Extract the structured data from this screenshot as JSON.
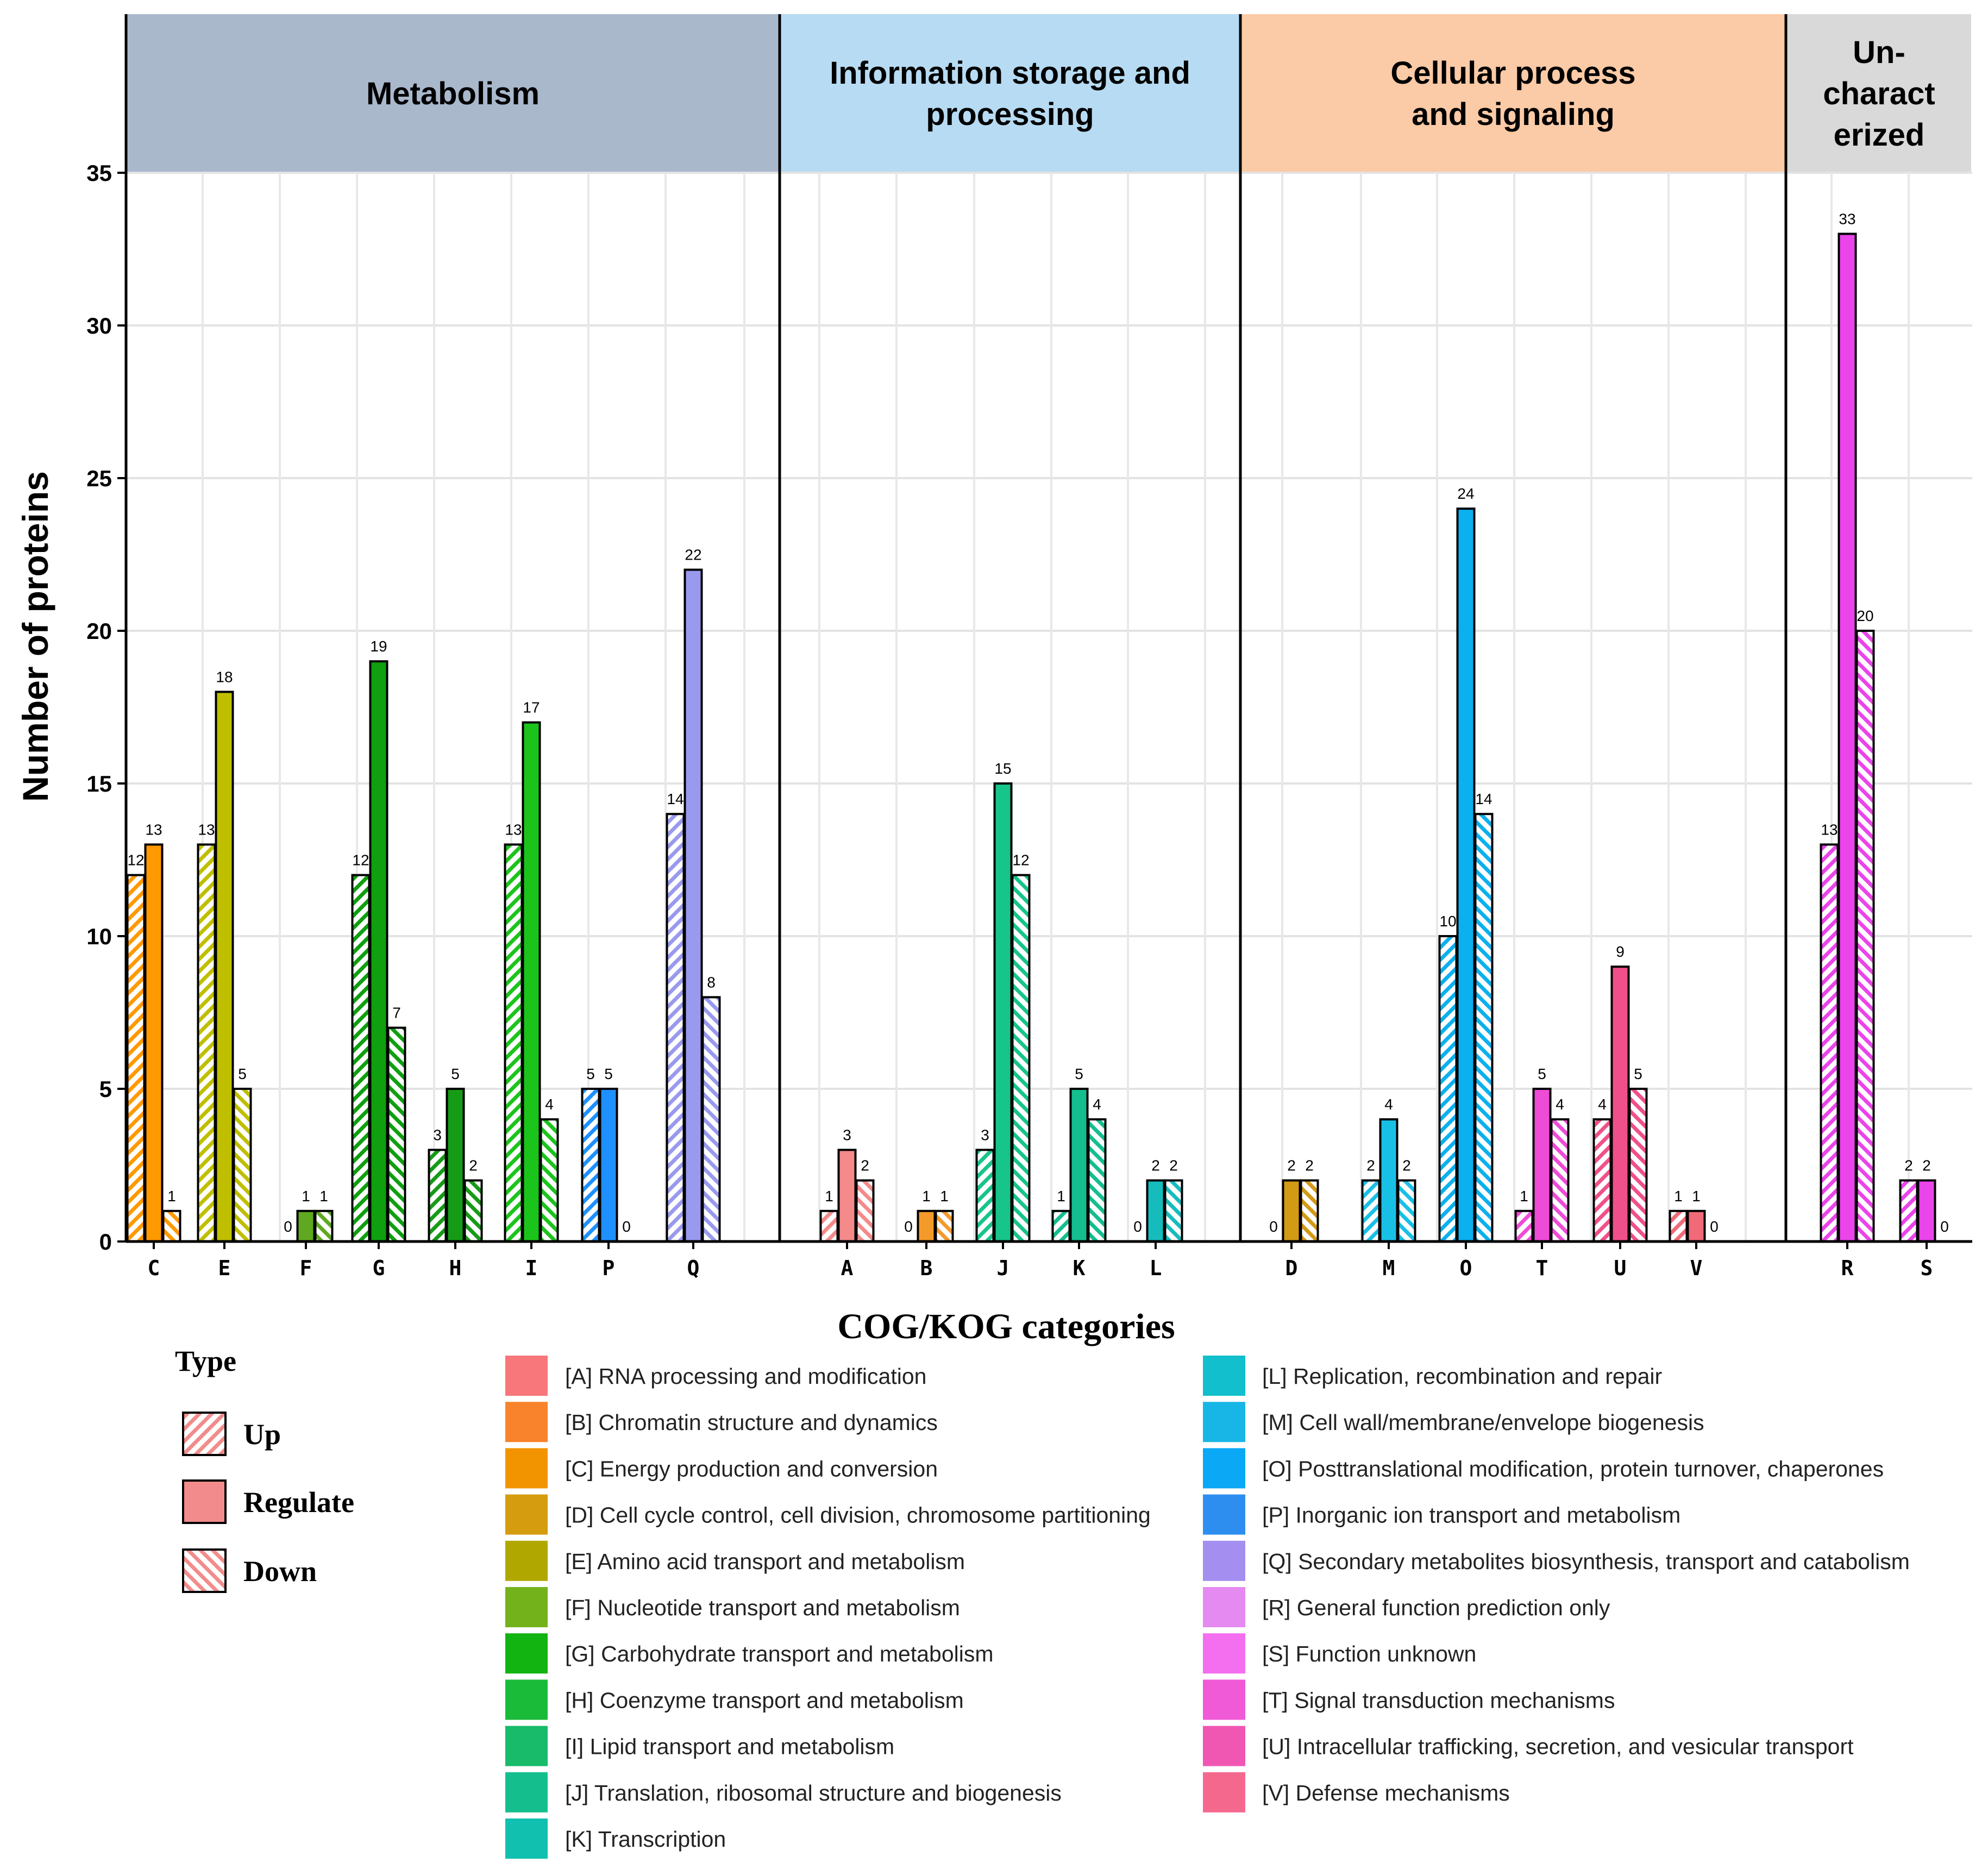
{
  "chart_data": {
    "type": "bar",
    "ylabel": "Number of proteins",
    "xlabel": "COG/KOG categories",
    "ylim": [
      0,
      35
    ],
    "yticks": [
      "0",
      "5",
      "10",
      "15",
      "20",
      "25",
      "30",
      "35"
    ],
    "series_names": [
      "Up",
      "Regulate",
      "Down"
    ],
    "groups": [
      {
        "title_lines": [
          "Metabolism"
        ],
        "color": "#aab8cc"
      },
      {
        "title_lines": [
          "Information storage and",
          "processing"
        ],
        "color": "#b7dbf2"
      },
      {
        "title_lines": [
          "Cellular process",
          "and signaling"
        ],
        "color": "#fbcaa6"
      },
      {
        "title_lines": [
          "Un-",
          "charact",
          "erized"
        ],
        "color": "#d9d9d9"
      }
    ],
    "categories": [
      {
        "code": "C",
        "group": 0,
        "color": "#ff9900",
        "up": 12,
        "regulate": 13,
        "down": 1
      },
      {
        "code": "E",
        "group": 0,
        "color": "#bfbf00",
        "up": 13,
        "regulate": 18,
        "down": 5
      },
      {
        "code": "F",
        "group": 0,
        "color": "#5fa81f",
        "up": 0,
        "regulate": 1,
        "down": 1
      },
      {
        "code": "G",
        "group": 0,
        "color": "#0f9f0f",
        "up": 12,
        "regulate": 19,
        "down": 7
      },
      {
        "code": "H",
        "group": 0,
        "color": "#169b16",
        "up": 3,
        "regulate": 5,
        "down": 2
      },
      {
        "code": "I",
        "group": 0,
        "color": "#1bc41b",
        "up": 13,
        "regulate": 17,
        "down": 4
      },
      {
        "code": "P",
        "group": 0,
        "color": "#1e90ff",
        "up": 5,
        "regulate": 5,
        "down": 0
      },
      {
        "code": "Q",
        "group": 0,
        "color": "#9999ee",
        "up": 14,
        "regulate": 22,
        "down": 8
      },
      {
        "code": "A",
        "group": 1,
        "color": "#f48a8a",
        "up": 1,
        "regulate": 3,
        "down": 2
      },
      {
        "code": "B",
        "group": 1,
        "color": "#f39a2a",
        "up": 0,
        "regulate": 1,
        "down": 1
      },
      {
        "code": "J",
        "group": 1,
        "color": "#17c48a",
        "up": 3,
        "regulate": 15,
        "down": 12
      },
      {
        "code": "K",
        "group": 1,
        "color": "#14be8e",
        "up": 1,
        "regulate": 5,
        "down": 4
      },
      {
        "code": "L",
        "group": 1,
        "color": "#16bcbc",
        "up": 0,
        "regulate": 2,
        "down": 2
      },
      {
        "code": "D",
        "group": 2,
        "color": "#d39a16",
        "up": 0,
        "regulate": 2,
        "down": 2
      },
      {
        "code": "M",
        "group": 2,
        "color": "#19c0e6",
        "up": 2,
        "regulate": 4,
        "down": 2
      },
      {
        "code": "O",
        "group": 2,
        "color": "#0bb0ee",
        "up": 10,
        "regulate": 24,
        "down": 14
      },
      {
        "code": "T",
        "group": 2,
        "color": "#ee4bd6",
        "up": 1,
        "regulate": 5,
        "down": 4
      },
      {
        "code": "U",
        "group": 2,
        "color": "#f0508a",
        "up": 4,
        "regulate": 9,
        "down": 5
      },
      {
        "code": "V",
        "group": 2,
        "color": "#f06a78",
        "up": 1,
        "regulate": 1,
        "down": 0
      },
      {
        "code": "R",
        "group": 3,
        "color": "#ea44ea",
        "up": 13,
        "regulate": 33,
        "down": 20
      },
      {
        "code": "S",
        "group": 3,
        "color": "#ea44ea",
        "up": 2,
        "regulate": 2,
        "down": 0
      }
    ],
    "type_legend": {
      "title": "Type",
      "items": [
        "Up",
        "Regulate",
        "Down"
      ],
      "color": "#f28c8c"
    },
    "category_legend": {
      "left": [
        {
          "label": "[A] RNA processing and modification",
          "color": "#f7777a"
        },
        {
          "label": "[B] Chromatin structure and dynamics",
          "color": "#f8832c"
        },
        {
          "label": "[C] Energy production and conversion",
          "color": "#f29400"
        },
        {
          "label": "[D] Cell cycle control, cell division, chromosome partitioning",
          "color": "#d59c0f"
        },
        {
          "label": "[E] Amino acid transport and metabolism",
          "color": "#b0a800"
        },
        {
          "label": "[F] Nucleotide transport and metabolism",
          "color": "#74b21b"
        },
        {
          "label": "[G] Carbohydrate transport and metabolism",
          "color": "#12b412"
        },
        {
          "label": "[H] Coenzyme transport and metabolism",
          "color": "#1bbb3a"
        },
        {
          "label": "[I] Lipid transport and metabolism",
          "color": "#17bb6a"
        },
        {
          "label": "[J] Translation, ribosomal structure and biogenesis",
          "color": "#14bf8d"
        },
        {
          "label": "[K] Transcription",
          "color": "#12c0b0"
        }
      ],
      "right": [
        {
          "label": "[L] Replication, recombination and repair",
          "color": "#12bfcc"
        },
        {
          "label": "[M] Cell wall/membrane/envelope biogenesis",
          "color": "#18b6e6"
        },
        {
          "label": "[O] Posttranslational modification, protein turnover, chaperones",
          "color": "#0aa8f5"
        },
        {
          "label": "[P] Inorganic ion transport and metabolism",
          "color": "#2e8ef0"
        },
        {
          "label": "[Q] Secondary metabolites biosynthesis, transport and catabolism",
          "color": "#a48ef0"
        },
        {
          "label": "[R] General function prediction only",
          "color": "#e58af0"
        },
        {
          "label": "[S] Function unknown",
          "color": "#f46ef0"
        },
        {
          "label": "[T] Signal transduction mechanisms",
          "color": "#f05ad6"
        },
        {
          "label": "[U] Intracellular trafficking, secretion, and vesicular transport",
          "color": "#f057b2"
        },
        {
          "label": "[V] Defense mechanisms",
          "color": "#f5688e"
        }
      ]
    }
  }
}
